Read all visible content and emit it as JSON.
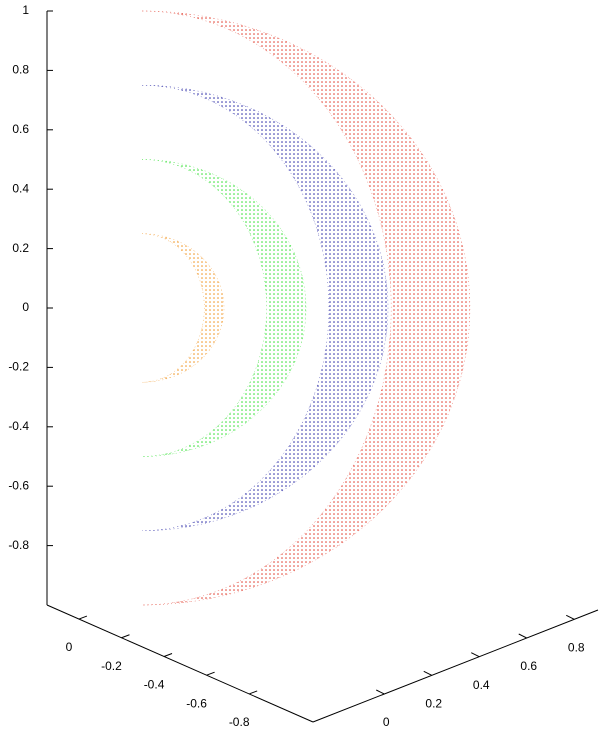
{
  "chart_data": {
    "type": "scatter3d",
    "zlim": [
      -1,
      1
    ],
    "zticks": [
      -0.8,
      -0.6,
      -0.4,
      -0.2,
      0,
      0.2,
      0.4,
      0.6,
      0.8,
      1
    ],
    "xlim": [
      0.15,
      -1.1
    ],
    "xticks": [
      0,
      -0.2,
      -0.4,
      -0.6,
      -0.8
    ],
    "ylim": [
      -0.3,
      0.9
    ],
    "yticks": [
      0,
      0.2,
      0.4,
      0.6,
      0.8
    ],
    "series": [
      {
        "color": "#e03020",
        "radius": 1
      },
      {
        "color": "#1a1aa0",
        "radius": 0.75
      },
      {
        "color": "#22dd22",
        "radius": 0.5
      },
      {
        "color": "#f08c10",
        "radius": 0.25
      }
    ]
  }
}
